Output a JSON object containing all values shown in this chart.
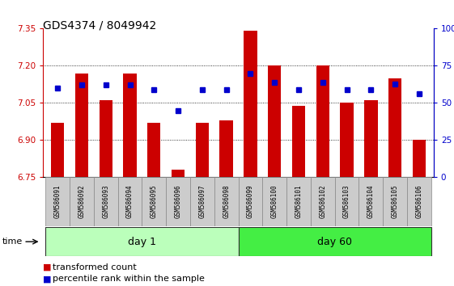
{
  "title": "GDS4374 / 8049942",
  "samples": [
    "GSM586091",
    "GSM586092",
    "GSM586093",
    "GSM586094",
    "GSM586095",
    "GSM586096",
    "GSM586097",
    "GSM586098",
    "GSM586099",
    "GSM586100",
    "GSM586101",
    "GSM586102",
    "GSM586103",
    "GSM586104",
    "GSM586105",
    "GSM586106"
  ],
  "bar_values": [
    6.97,
    7.17,
    7.06,
    7.17,
    6.97,
    6.78,
    6.97,
    6.98,
    7.34,
    7.2,
    7.04,
    7.2,
    7.05,
    7.06,
    7.15,
    6.9
  ],
  "percentile_values": [
    60,
    62,
    62,
    62,
    59,
    45,
    59,
    59,
    70,
    64,
    59,
    64,
    59,
    59,
    63,
    56
  ],
  "bar_color": "#cc0000",
  "percentile_color": "#0000cc",
  "ymin": 6.75,
  "ymax": 7.35,
  "yticks": [
    6.75,
    6.9,
    7.05,
    7.2,
    7.35
  ],
  "y2min": 0,
  "y2max": 100,
  "y2ticks": [
    0,
    25,
    50,
    75,
    100
  ],
  "day1_label": "day 1",
  "day60_label": "day 60",
  "n_day1": 8,
  "n_day60": 8,
  "day1_color": "#bbffbb",
  "day60_color": "#44ee44",
  "group_bar_color": "#cccccc",
  "background_color": "#ffffff",
  "title_fontsize": 10,
  "tick_fontsize": 7.5,
  "sample_fontsize": 5.5,
  "group_fontsize": 9,
  "legend_fontsize": 8
}
